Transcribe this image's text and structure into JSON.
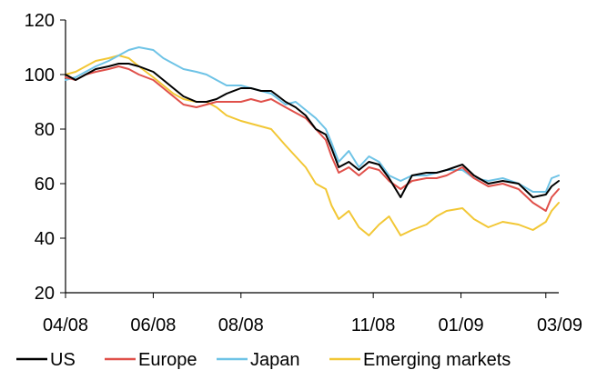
{
  "chart_data": {
    "type": "line",
    "title": "",
    "xlabel": "",
    "ylabel": "",
    "ylim": [
      20,
      120
    ],
    "yticks": [
      20,
      40,
      60,
      80,
      100,
      120
    ],
    "xlim": [
      "2008-04-01",
      "2009-03-10"
    ],
    "xtick_labels": [
      "04/08",
      "06/08",
      "08/08",
      "11/08",
      "01/09",
      "03/09"
    ],
    "xtick_dates": [
      "2008-04-01",
      "2008-06-01",
      "2008-08-01",
      "2008-11-01",
      "2009-01-01",
      "2009-03-01"
    ],
    "grid": false,
    "legend_position": "bottom",
    "series": [
      {
        "name": "US",
        "color": "#000000",
        "points": [
          [
            "2008-04-01",
            100
          ],
          [
            "2008-04-08",
            98
          ],
          [
            "2008-04-15",
            100
          ],
          [
            "2008-04-22",
            102
          ],
          [
            "2008-05-01",
            103
          ],
          [
            "2008-05-08",
            104
          ],
          [
            "2008-05-15",
            104
          ],
          [
            "2008-05-22",
            103
          ],
          [
            "2008-06-01",
            101
          ],
          [
            "2008-06-08",
            98
          ],
          [
            "2008-06-15",
            95
          ],
          [
            "2008-06-22",
            92
          ],
          [
            "2008-07-01",
            90
          ],
          [
            "2008-07-08",
            90
          ],
          [
            "2008-07-15",
            91
          ],
          [
            "2008-07-22",
            93
          ],
          [
            "2008-08-01",
            95
          ],
          [
            "2008-08-08",
            95
          ],
          [
            "2008-08-15",
            94
          ],
          [
            "2008-08-22",
            94
          ],
          [
            "2008-09-01",
            90
          ],
          [
            "2008-09-08",
            88
          ],
          [
            "2008-09-15",
            85
          ],
          [
            "2008-09-22",
            80
          ],
          [
            "2008-09-29",
            78
          ],
          [
            "2008-10-03",
            73
          ],
          [
            "2008-10-08",
            66
          ],
          [
            "2008-10-15",
            68
          ],
          [
            "2008-10-22",
            65
          ],
          [
            "2008-10-29",
            68
          ],
          [
            "2008-11-05",
            67
          ],
          [
            "2008-11-12",
            62
          ],
          [
            "2008-11-20",
            55
          ],
          [
            "2008-11-28",
            63
          ],
          [
            "2008-12-08",
            64
          ],
          [
            "2008-12-15",
            64
          ],
          [
            "2008-12-22",
            65
          ],
          [
            "2009-01-02",
            67
          ],
          [
            "2009-01-10",
            63
          ],
          [
            "2009-01-20",
            60
          ],
          [
            "2009-01-30",
            61
          ],
          [
            "2009-02-10",
            60
          ],
          [
            "2009-02-20",
            55
          ],
          [
            "2009-03-01",
            56
          ],
          [
            "2009-03-05",
            59
          ],
          [
            "2009-03-10",
            61
          ]
        ]
      },
      {
        "name": "Europe",
        "color": "#e0504a",
        "points": [
          [
            "2008-04-01",
            99
          ],
          [
            "2008-04-08",
            98
          ],
          [
            "2008-04-15",
            100
          ],
          [
            "2008-04-22",
            101
          ],
          [
            "2008-05-01",
            102
          ],
          [
            "2008-05-08",
            103
          ],
          [
            "2008-05-15",
            102
          ],
          [
            "2008-05-22",
            100
          ],
          [
            "2008-06-01",
            98
          ],
          [
            "2008-06-08",
            95
          ],
          [
            "2008-06-15",
            92
          ],
          [
            "2008-06-22",
            89
          ],
          [
            "2008-07-01",
            88
          ],
          [
            "2008-07-08",
            89
          ],
          [
            "2008-07-15",
            90
          ],
          [
            "2008-07-22",
            90
          ],
          [
            "2008-08-01",
            90
          ],
          [
            "2008-08-08",
            91
          ],
          [
            "2008-08-15",
            90
          ],
          [
            "2008-08-22",
            91
          ],
          [
            "2008-09-01",
            88
          ],
          [
            "2008-09-08",
            86
          ],
          [
            "2008-09-15",
            84
          ],
          [
            "2008-09-22",
            80
          ],
          [
            "2008-09-29",
            76
          ],
          [
            "2008-10-03",
            70
          ],
          [
            "2008-10-08",
            64
          ],
          [
            "2008-10-15",
            66
          ],
          [
            "2008-10-22",
            63
          ],
          [
            "2008-10-29",
            66
          ],
          [
            "2008-11-05",
            65
          ],
          [
            "2008-11-12",
            61
          ],
          [
            "2008-11-20",
            58
          ],
          [
            "2008-11-28",
            61
          ],
          [
            "2008-12-08",
            62
          ],
          [
            "2008-12-15",
            62
          ],
          [
            "2008-12-22",
            63
          ],
          [
            "2009-01-02",
            66
          ],
          [
            "2009-01-10",
            62
          ],
          [
            "2009-01-20",
            59
          ],
          [
            "2009-01-30",
            60
          ],
          [
            "2009-02-10",
            58
          ],
          [
            "2009-02-20",
            53
          ],
          [
            "2009-03-01",
            50
          ],
          [
            "2009-03-05",
            55
          ],
          [
            "2009-03-10",
            58
          ]
        ]
      },
      {
        "name": "Japan",
        "color": "#6ec3e6",
        "points": [
          [
            "2008-04-01",
            98
          ],
          [
            "2008-04-08",
            99
          ],
          [
            "2008-04-15",
            101
          ],
          [
            "2008-04-22",
            103
          ],
          [
            "2008-05-01",
            105
          ],
          [
            "2008-05-08",
            107
          ],
          [
            "2008-05-15",
            109
          ],
          [
            "2008-05-22",
            110
          ],
          [
            "2008-06-01",
            109
          ],
          [
            "2008-06-08",
            106
          ],
          [
            "2008-06-15",
            104
          ],
          [
            "2008-06-22",
            102
          ],
          [
            "2008-07-01",
            101
          ],
          [
            "2008-07-08",
            100
          ],
          [
            "2008-07-15",
            98
          ],
          [
            "2008-07-22",
            96
          ],
          [
            "2008-08-01",
            96
          ],
          [
            "2008-08-08",
            95
          ],
          [
            "2008-08-15",
            94
          ],
          [
            "2008-08-22",
            93
          ],
          [
            "2008-09-01",
            89
          ],
          [
            "2008-09-08",
            90
          ],
          [
            "2008-09-15",
            87
          ],
          [
            "2008-09-22",
            84
          ],
          [
            "2008-09-29",
            80
          ],
          [
            "2008-10-03",
            75
          ],
          [
            "2008-10-08",
            68
          ],
          [
            "2008-10-15",
            72
          ],
          [
            "2008-10-22",
            66
          ],
          [
            "2008-10-29",
            70
          ],
          [
            "2008-11-05",
            68
          ],
          [
            "2008-11-12",
            63
          ],
          [
            "2008-11-20",
            61
          ],
          [
            "2008-11-28",
            63
          ],
          [
            "2008-12-08",
            63
          ],
          [
            "2008-12-15",
            64
          ],
          [
            "2008-12-22",
            65
          ],
          [
            "2009-01-02",
            65
          ],
          [
            "2009-01-10",
            62
          ],
          [
            "2009-01-20",
            61
          ],
          [
            "2009-01-30",
            62
          ],
          [
            "2009-02-10",
            60
          ],
          [
            "2009-02-20",
            57
          ],
          [
            "2009-03-01",
            57
          ],
          [
            "2009-03-05",
            62
          ],
          [
            "2009-03-10",
            63
          ]
        ]
      },
      {
        "name": "Emerging markets",
        "color": "#f2c735",
        "points": [
          [
            "2008-04-01",
            100
          ],
          [
            "2008-04-08",
            101
          ],
          [
            "2008-04-15",
            103
          ],
          [
            "2008-04-22",
            105
          ],
          [
            "2008-05-01",
            106
          ],
          [
            "2008-05-08",
            107
          ],
          [
            "2008-05-15",
            106
          ],
          [
            "2008-05-22",
            103
          ],
          [
            "2008-06-01",
            99
          ],
          [
            "2008-06-08",
            96
          ],
          [
            "2008-06-15",
            93
          ],
          [
            "2008-06-22",
            91
          ],
          [
            "2008-07-01",
            90
          ],
          [
            "2008-07-08",
            90
          ],
          [
            "2008-07-15",
            88
          ],
          [
            "2008-07-22",
            85
          ],
          [
            "2008-08-01",
            83
          ],
          [
            "2008-08-08",
            82
          ],
          [
            "2008-08-15",
            81
          ],
          [
            "2008-08-22",
            80
          ],
          [
            "2008-09-01",
            74
          ],
          [
            "2008-09-08",
            70
          ],
          [
            "2008-09-15",
            66
          ],
          [
            "2008-09-22",
            60
          ],
          [
            "2008-09-29",
            58
          ],
          [
            "2008-10-03",
            52
          ],
          [
            "2008-10-08",
            47
          ],
          [
            "2008-10-15",
            50
          ],
          [
            "2008-10-22",
            44
          ],
          [
            "2008-10-29",
            41
          ],
          [
            "2008-11-05",
            45
          ],
          [
            "2008-11-12",
            48
          ],
          [
            "2008-11-20",
            41
          ],
          [
            "2008-11-28",
            43
          ],
          [
            "2008-12-08",
            45
          ],
          [
            "2008-12-15",
            48
          ],
          [
            "2008-12-22",
            50
          ],
          [
            "2009-01-02",
            51
          ],
          [
            "2009-01-10",
            47
          ],
          [
            "2009-01-20",
            44
          ],
          [
            "2009-01-30",
            46
          ],
          [
            "2009-02-10",
            45
          ],
          [
            "2009-02-20",
            43
          ],
          [
            "2009-03-01",
            46
          ],
          [
            "2009-03-05",
            50
          ],
          [
            "2009-03-10",
            53
          ]
        ]
      }
    ]
  }
}
